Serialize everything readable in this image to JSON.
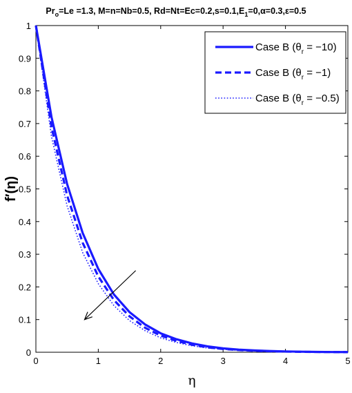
{
  "chart_data": {
    "type": "line",
    "title": {
      "parts": [
        {
          "text": "Pr",
          "sub": false
        },
        {
          "text": "o",
          "sub": true
        },
        {
          "text": "=Le =1.3, M=n=Nb=0.5, Rd=Nt=Ec=0.2,s=0.1,E",
          "sub": false
        },
        {
          "text": "1",
          "sub": true
        },
        {
          "text": "=0,α=0.3,ε=0.5",
          "sub": false
        }
      ]
    },
    "xlabel": "η",
    "ylabel": "f′(η)",
    "xlim": [
      0,
      5
    ],
    "ylim": [
      0,
      1
    ],
    "xticks": [
      0,
      1,
      2,
      3,
      4,
      5
    ],
    "yticks": [
      0,
      0.1,
      0.2,
      0.3,
      0.4,
      0.5,
      0.6,
      0.7,
      0.8,
      0.9,
      1
    ],
    "grid": false,
    "legend_position": "top-right",
    "color": "#1a1aff",
    "x": [
      0,
      0.25,
      0.5,
      0.75,
      1,
      1.25,
      1.5,
      1.75,
      2,
      2.25,
      2.5,
      2.75,
      3,
      3.25,
      3.5,
      3.75,
      4,
      4.25,
      4.5,
      4.75,
      5
    ],
    "series": [
      {
        "name": {
          "pre": "Case B (θ",
          "sub": "r",
          "post": " = −10)"
        },
        "style": "solid",
        "values": [
          1,
          0.72,
          0.515,
          0.365,
          0.255,
          0.177,
          0.123,
          0.085,
          0.058,
          0.04,
          0.027,
          0.018,
          0.012,
          0.008,
          0.0055,
          0.0037,
          0.0025,
          0.0017,
          0.0011,
          0.0007,
          0.0005
        ]
      },
      {
        "name": {
          "pre": "Case B (θ",
          "sub": "r",
          "post": " = −1)"
        },
        "style": "dashed",
        "values": [
          1,
          0.69,
          0.48,
          0.335,
          0.232,
          0.16,
          0.11,
          0.075,
          0.051,
          0.035,
          0.023,
          0.015,
          0.01,
          0.0068,
          0.0045,
          0.003,
          0.002,
          0.0013,
          0.0009,
          0.0006,
          0.0004
        ]
      },
      {
        "name": {
          "pre": "Case B (θ",
          "sub": "r",
          "post": " = −0.5)"
        },
        "style": "dotted",
        "values": [
          1,
          0.66,
          0.448,
          0.305,
          0.21,
          0.143,
          0.097,
          0.066,
          0.044,
          0.03,
          0.02,
          0.013,
          0.0086,
          0.0057,
          0.0037,
          0.0025,
          0.0016,
          0.0011,
          0.0007,
          0.0005,
          0.0003
        ]
      }
    ],
    "annotations": [
      {
        "type": "arrow",
        "from": [
          1.6,
          0.25
        ],
        "to": [
          0.78,
          0.1
        ],
        "color": "#000000"
      }
    ]
  }
}
